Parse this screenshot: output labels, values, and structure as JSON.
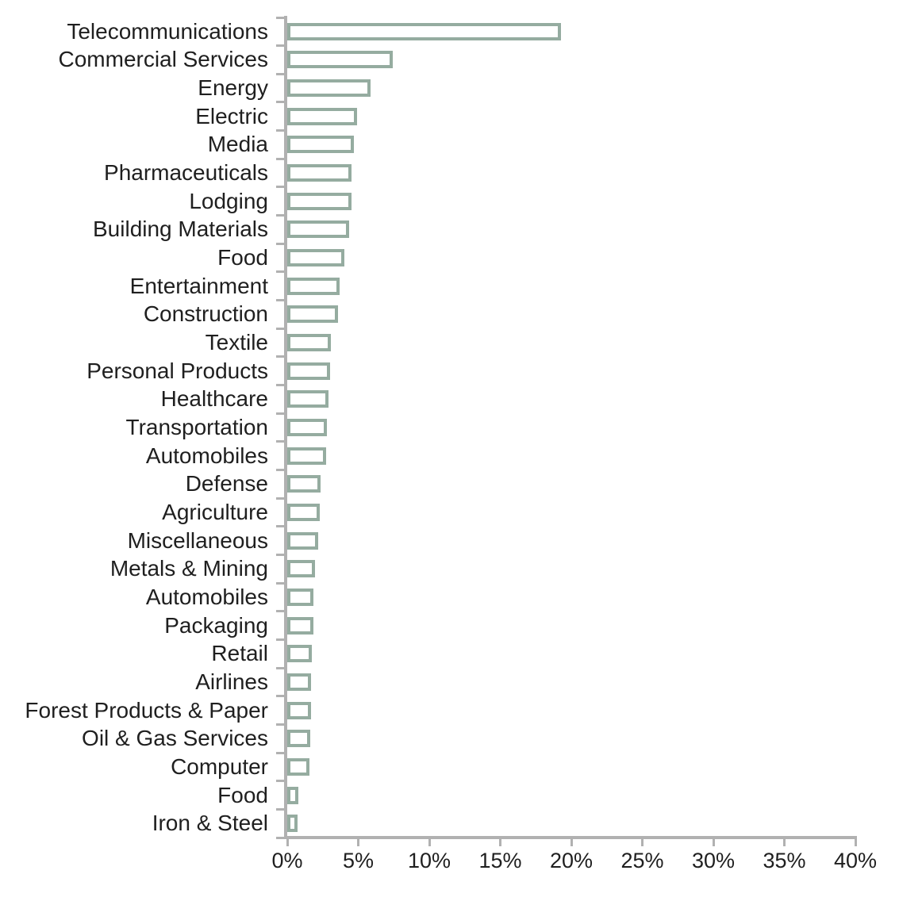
{
  "chart_data": {
    "type": "bar",
    "orientation": "horizontal",
    "title": "",
    "xlabel": "",
    "ylabel": "",
    "unit": "%",
    "grid": false,
    "legend": false,
    "xlim": [
      0,
      40
    ],
    "x_ticks": [
      "0%",
      "5%",
      "10%",
      "15%",
      "20%",
      "25%",
      "30%",
      "35%",
      "40%"
    ],
    "x_tick_values": [
      0,
      5,
      10,
      15,
      20,
      25,
      30,
      35,
      40
    ],
    "categories": [
      "Telecommunications",
      "Commercial Services",
      "Energy",
      "Electric",
      "Media",
      "Pharmaceuticals",
      "Lodging",
      "Building Materials",
      "Food",
      "Entertainment",
      "Construction",
      "Textile",
      "Personal Products",
      "Healthcare",
      "Transportation",
      "Automobiles",
      "Defense",
      "Agriculture",
      "Miscellaneous",
      "Metals & Mining",
      "Automobiles",
      "Packaging",
      "Retail",
      "Airlines",
      "Forest Products & Paper",
      "Oil & Gas Services",
      "Computer",
      "Food",
      "Iron & Steel"
    ],
    "values": [
      19.3,
      7.45,
      5.85,
      4.9,
      4.7,
      4.55,
      4.5,
      4.35,
      4.05,
      3.7,
      3.6,
      3.1,
      3.0,
      2.9,
      2.8,
      2.75,
      2.35,
      2.3,
      2.2,
      1.95,
      1.85,
      1.85,
      1.75,
      1.7,
      1.7,
      1.6,
      1.55,
      0.8,
      0.7
    ],
    "colors": {
      "bar_fill": "#ffffff",
      "bar_border": "#95aca0",
      "axis": "#b1b1b1",
      "text": "#1f1f1f",
      "background": "#ffffff"
    }
  }
}
